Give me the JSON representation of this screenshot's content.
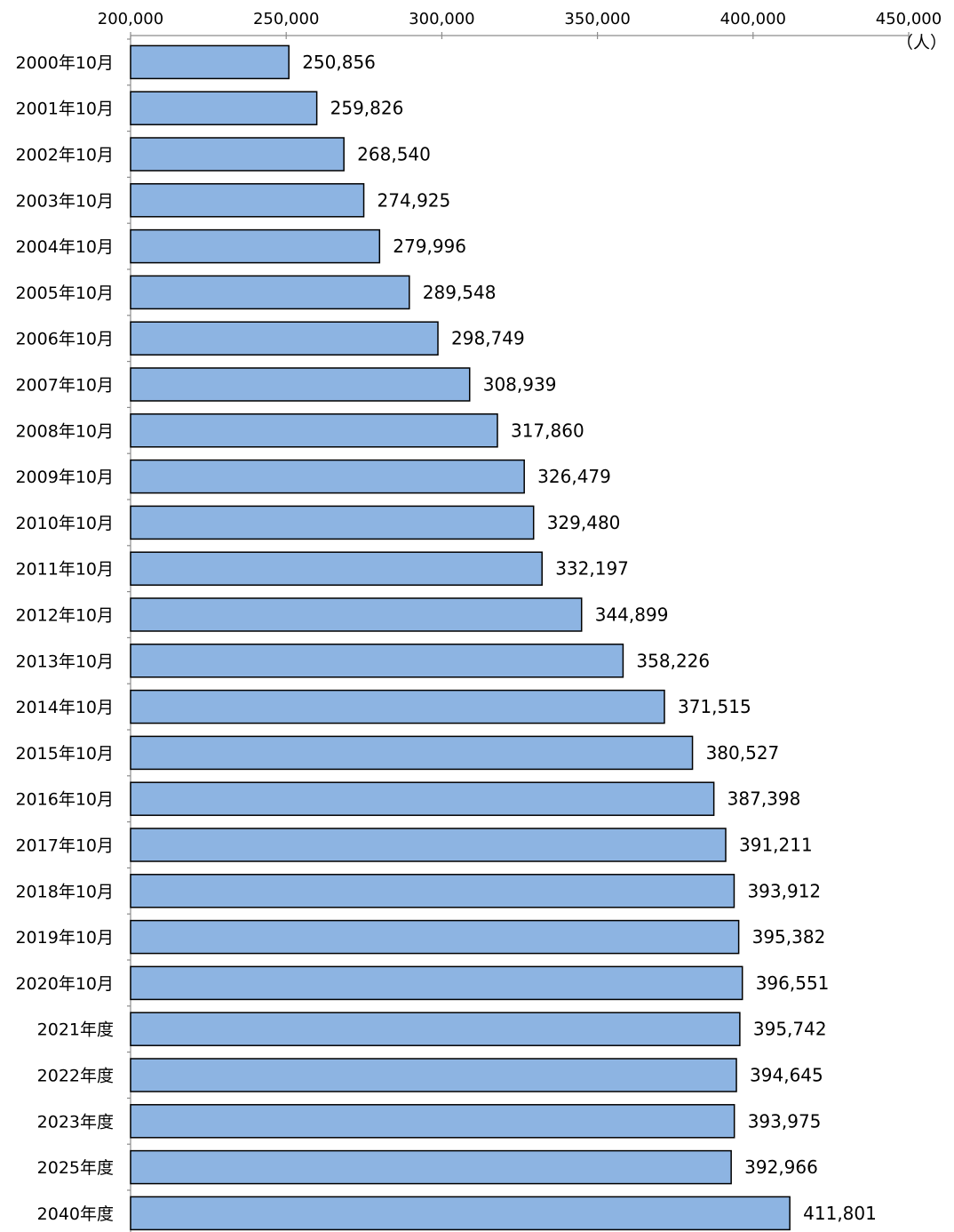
{
  "chart_data": {
    "type": "bar",
    "orientation": "horizontal",
    "title": "",
    "xlabel": "",
    "ylabel": "",
    "unit": "（人）",
    "xlim": [
      200000,
      450000
    ],
    "x_ticks": [
      200000,
      250000,
      300000,
      350000,
      400000,
      450000
    ],
    "x_tick_labels": [
      "200,000",
      "250,000",
      "300,000",
      "350,000",
      "400,000",
      "450,000"
    ],
    "grid": false,
    "legend": "none",
    "bar_color": "#8db4e2",
    "bar_edge_color": "#000000",
    "categories": [
      "2000年10月",
      "2001年10月",
      "2002年10月",
      "2003年10月",
      "2004年10月",
      "2005年10月",
      "2006年10月",
      "2007年10月",
      "2008年10月",
      "2009年10月",
      "2010年10月",
      "2011年10月",
      "2012年10月",
      "2013年10月",
      "2014年10月",
      "2015年10月",
      "2016年10月",
      "2017年10月",
      "2018年10月",
      "2019年10月",
      "2020年10月",
      "2021年度",
      "2022年度",
      "2023年度",
      "2025年度",
      "2040年度"
    ],
    "values": [
      250856,
      259826,
      268540,
      274925,
      279996,
      289548,
      298749,
      308939,
      317860,
      326479,
      329480,
      332197,
      344899,
      358226,
      371515,
      380527,
      387398,
      391211,
      393912,
      395382,
      396551,
      395742,
      394645,
      393975,
      392966,
      411801
    ],
    "value_labels": [
      "250,856",
      "259,826",
      "268,540",
      "274,925",
      "279,996",
      "289,548",
      "298,749",
      "308,939",
      "317,860",
      "326,479",
      "329,480",
      "332,197",
      "344,899",
      "358,226",
      "371,515",
      "380,527",
      "387,398",
      "391,211",
      "393,912",
      "395,382",
      "396,551",
      "395,742",
      "394,645",
      "393,975",
      "392,966",
      "411,801"
    ]
  }
}
